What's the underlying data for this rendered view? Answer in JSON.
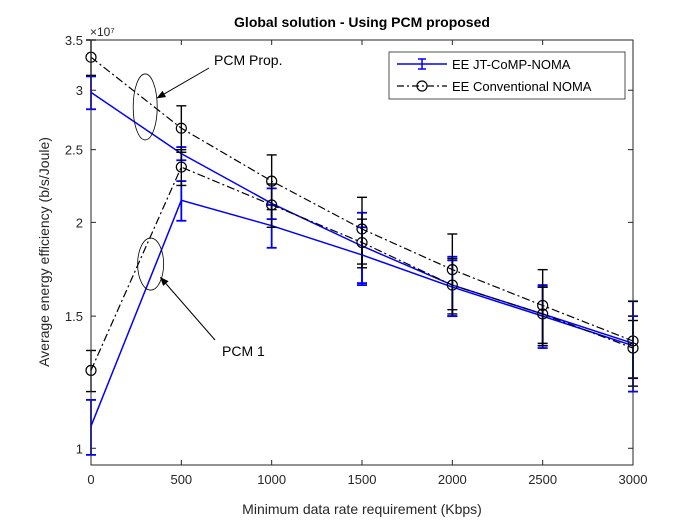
{
  "chart_data": {
    "type": "line",
    "title": "Global solution - Using PCM proposed",
    "xlabel": "Minimum data rate requirement (Kbps)",
    "ylabel": "Average energy efficiency (b/s/Joule)",
    "y_exponent_label": "×10⁷",
    "xlim": [
      0,
      3000
    ],
    "ylim": [
      0.95,
      3.5
    ],
    "xticks": [
      0,
      500,
      1000,
      1500,
      2000,
      2500,
      3000
    ],
    "xtick_labels": [
      "0",
      "500",
      "1000",
      "1500",
      "2000",
      "2500",
      "3000"
    ],
    "yticks": [
      1,
      1.5,
      2,
      2.5,
      3,
      3.5
    ],
    "ytick_labels": [
      "1",
      "1.5",
      "2",
      "2.5",
      "3",
      "3.5"
    ],
    "y_scale": "log",
    "grid": false,
    "legend_position": "top-right",
    "legend": [
      {
        "label": "EE JT-CoMP-NOMA",
        "color": "#0000ff",
        "style": "solid",
        "marker": "errorbar"
      },
      {
        "label": "EE Conventional NOMA",
        "color": "#000000",
        "style": "dashdot",
        "marker": "circle"
      }
    ],
    "series": [
      {
        "group": "PCM Prop.",
        "legend_index": 0,
        "color": "#0000ff",
        "style": "solid",
        "marker": "none",
        "x": [
          0,
          500,
          1000,
          1500,
          2000,
          2500,
          3000
        ],
        "y": [
          2.98,
          2.47,
          2.12,
          1.86,
          1.65,
          1.51,
          1.38
        ],
        "err": [
          0.15,
          0.05,
          0.1,
          0.2,
          0.15,
          0.14,
          0.19
        ]
      },
      {
        "group": "PCM 1",
        "legend_index": 0,
        "color": "#0000ff",
        "style": "solid",
        "marker": "none",
        "x": [
          0,
          500,
          1000,
          1500,
          2000,
          2500,
          3000
        ],
        "y": [
          1.07,
          2.14,
          1.98,
          1.81,
          1.64,
          1.5,
          1.37
        ],
        "err": [
          0.09,
          0.13,
          0.13,
          0.16,
          0.14,
          0.14,
          0.13
        ]
      },
      {
        "group": "PCM Prop.",
        "legend_index": 1,
        "color": "#000000",
        "style": "dashdot",
        "marker": "circle",
        "x": [
          0,
          500,
          1000,
          1500,
          2000,
          2500,
          3000
        ],
        "y": [
          3.32,
          2.67,
          2.27,
          1.96,
          1.73,
          1.55,
          1.39
        ],
        "err": [
          0.18,
          0.19,
          0.19,
          0.2,
          0.2,
          0.18,
          0.18
        ]
      },
      {
        "group": "PCM 1",
        "legend_index": 1,
        "color": "#000000",
        "style": "dashdot",
        "marker": "circle",
        "x": [
          0,
          500,
          1000,
          1500,
          2000,
          2500,
          3000
        ],
        "y": [
          1.27,
          2.37,
          2.11,
          1.88,
          1.65,
          1.51,
          1.36
        ],
        "err": [
          0.08,
          0.13,
          0.14,
          0.14,
          0.14,
          0.13,
          0.12
        ]
      }
    ],
    "annotations": [
      {
        "text": "PCM Prop.",
        "points_to": {
          "x": 300,
          "y": 2.85
        }
      },
      {
        "text": "PCM 1",
        "points_to": {
          "x": 330,
          "y": 1.76
        }
      }
    ]
  }
}
